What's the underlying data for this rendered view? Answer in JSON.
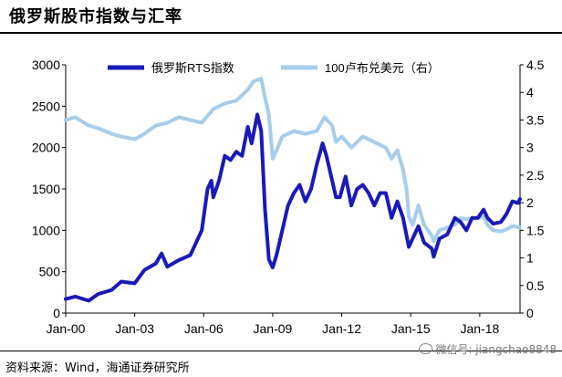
{
  "header": {
    "title": "俄罗斯股市指数与汇率"
  },
  "footer": {
    "source": "资料来源：Wind，海通证券研究所",
    "watermark": "微信号: jiangchao8848"
  },
  "colors": {
    "rts": "#1a1ab8",
    "fx": "#a6cdeb"
  },
  "chart_data": {
    "type": "line",
    "x_ticks": [
      "Jan-00",
      "Jan-03",
      "Jan-06",
      "Jan-09",
      "Jan-12",
      "Jan-15",
      "Jan-18"
    ],
    "x_range": [
      "2000-01",
      "2019-10"
    ],
    "y_left": {
      "range": [
        0,
        3000
      ],
      "ticks": [
        "0",
        "500",
        "1000",
        "1500",
        "2000",
        "2500",
        "3000"
      ]
    },
    "y_right": {
      "range": [
        0,
        4.5
      ],
      "ticks": [
        "0",
        "0.5",
        "1",
        "1.5",
        "2",
        "2.5",
        "3",
        "3.5",
        "4",
        "4.5"
      ]
    },
    "legend_position": "top",
    "series": [
      {
        "name": "俄罗斯RTS指数",
        "axis": "left",
        "points": [
          [
            "2000-01",
            170
          ],
          [
            "2000-06",
            200
          ],
          [
            "2001-01",
            150
          ],
          [
            "2001-06",
            230
          ],
          [
            "2002-01",
            280
          ],
          [
            "2002-06",
            380
          ],
          [
            "2003-01",
            360
          ],
          [
            "2003-06",
            520
          ],
          [
            "2003-12",
            600
          ],
          [
            "2004-03",
            720
          ],
          [
            "2004-06",
            560
          ],
          [
            "2004-12",
            640
          ],
          [
            "2005-06",
            700
          ],
          [
            "2005-12",
            1000
          ],
          [
            "2006-03",
            1500
          ],
          [
            "2006-05",
            1600
          ],
          [
            "2006-06",
            1400
          ],
          [
            "2006-09",
            1600
          ],
          [
            "2006-12",
            1900
          ],
          [
            "2007-03",
            1850
          ],
          [
            "2007-06",
            1950
          ],
          [
            "2007-09",
            1900
          ],
          [
            "2007-12",
            2250
          ],
          [
            "2008-02",
            2050
          ],
          [
            "2008-05",
            2400
          ],
          [
            "2008-07",
            2200
          ],
          [
            "2008-09",
            1250
          ],
          [
            "2008-11",
            650
          ],
          [
            "2009-01",
            550
          ],
          [
            "2009-03",
            700
          ],
          [
            "2009-06",
            1000
          ],
          [
            "2009-09",
            1300
          ],
          [
            "2009-12",
            1450
          ],
          [
            "2010-03",
            1550
          ],
          [
            "2010-06",
            1350
          ],
          [
            "2010-09",
            1500
          ],
          [
            "2010-12",
            1800
          ],
          [
            "2011-03",
            2050
          ],
          [
            "2011-05",
            1900
          ],
          [
            "2011-08",
            1600
          ],
          [
            "2011-10",
            1400
          ],
          [
            "2011-12",
            1400
          ],
          [
            "2012-03",
            1650
          ],
          [
            "2012-06",
            1300
          ],
          [
            "2012-09",
            1500
          ],
          [
            "2012-12",
            1550
          ],
          [
            "2013-03",
            1450
          ],
          [
            "2013-06",
            1300
          ],
          [
            "2013-09",
            1450
          ],
          [
            "2013-12",
            1450
          ],
          [
            "2014-03",
            1150
          ],
          [
            "2014-06",
            1350
          ],
          [
            "2014-09",
            1150
          ],
          [
            "2014-12",
            800
          ],
          [
            "2015-02",
            900
          ],
          [
            "2015-05",
            1050
          ],
          [
            "2015-08",
            850
          ],
          [
            "2015-12",
            780
          ],
          [
            "2016-01",
            680
          ],
          [
            "2016-04",
            900
          ],
          [
            "2016-08",
            950
          ],
          [
            "2016-12",
            1150
          ],
          [
            "2017-03",
            1100
          ],
          [
            "2017-06",
            1000
          ],
          [
            "2017-09",
            1150
          ],
          [
            "2017-12",
            1150
          ],
          [
            "2018-03",
            1250
          ],
          [
            "2018-05",
            1150
          ],
          [
            "2018-08",
            1080
          ],
          [
            "2018-12",
            1100
          ],
          [
            "2019-03",
            1200
          ],
          [
            "2019-06",
            1350
          ],
          [
            "2019-09",
            1330
          ],
          [
            "2019-10",
            1380
          ]
        ]
      },
      {
        "name": "100卢布兑美元（右）",
        "axis": "right",
        "points": [
          [
            "2000-01",
            3.5
          ],
          [
            "2000-06",
            3.55
          ],
          [
            "2001-01",
            3.4
          ],
          [
            "2001-06",
            3.35
          ],
          [
            "2002-01",
            3.25
          ],
          [
            "2002-06",
            3.2
          ],
          [
            "2003-01",
            3.15
          ],
          [
            "2003-06",
            3.25
          ],
          [
            "2003-12",
            3.4
          ],
          [
            "2004-06",
            3.45
          ],
          [
            "2004-12",
            3.55
          ],
          [
            "2005-06",
            3.5
          ],
          [
            "2005-12",
            3.45
          ],
          [
            "2006-06",
            3.7
          ],
          [
            "2006-12",
            3.8
          ],
          [
            "2007-06",
            3.85
          ],
          [
            "2007-12",
            4.05
          ],
          [
            "2008-03",
            4.2
          ],
          [
            "2008-07",
            4.25
          ],
          [
            "2008-09",
            3.9
          ],
          [
            "2008-11",
            3.6
          ],
          [
            "2009-01",
            2.8
          ],
          [
            "2009-03",
            2.95
          ],
          [
            "2009-06",
            3.2
          ],
          [
            "2009-12",
            3.3
          ],
          [
            "2010-06",
            3.25
          ],
          [
            "2010-12",
            3.3
          ],
          [
            "2011-04",
            3.55
          ],
          [
            "2011-08",
            3.4
          ],
          [
            "2011-10",
            3.1
          ],
          [
            "2012-01",
            3.2
          ],
          [
            "2012-06",
            3.0
          ],
          [
            "2012-12",
            3.2
          ],
          [
            "2013-06",
            3.1
          ],
          [
            "2013-12",
            3.0
          ],
          [
            "2014-03",
            2.8
          ],
          [
            "2014-06",
            2.95
          ],
          [
            "2014-09",
            2.6
          ],
          [
            "2014-11",
            2.2
          ],
          [
            "2014-12",
            1.75
          ],
          [
            "2015-02",
            1.6
          ],
          [
            "2015-05",
            1.95
          ],
          [
            "2015-08",
            1.6
          ],
          [
            "2015-12",
            1.4
          ],
          [
            "2016-01",
            1.3
          ],
          [
            "2016-04",
            1.5
          ],
          [
            "2016-08",
            1.55
          ],
          [
            "2016-12",
            1.6
          ],
          [
            "2017-03",
            1.72
          ],
          [
            "2017-06",
            1.7
          ],
          [
            "2017-09",
            1.72
          ],
          [
            "2017-12",
            1.72
          ],
          [
            "2018-03",
            1.75
          ],
          [
            "2018-05",
            1.6
          ],
          [
            "2018-08",
            1.5
          ],
          [
            "2018-12",
            1.48
          ],
          [
            "2019-03",
            1.52
          ],
          [
            "2019-06",
            1.58
          ],
          [
            "2019-10",
            1.55
          ]
        ]
      }
    ]
  }
}
